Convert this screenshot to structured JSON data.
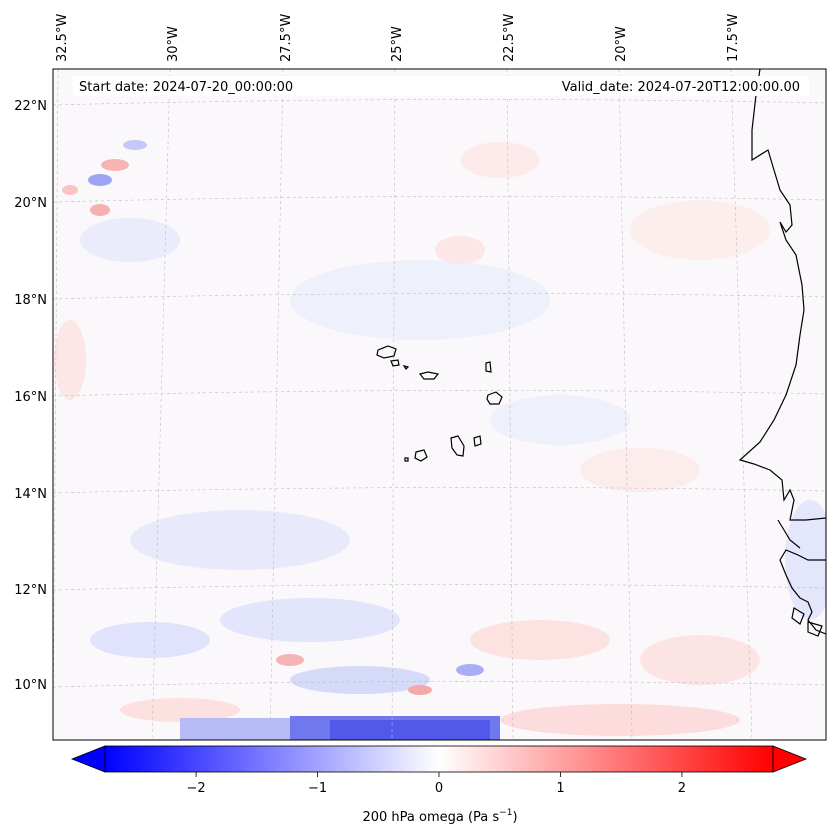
{
  "map": {
    "top_lon_labels": [
      "32.5°W",
      "30°W",
      "27.5°W",
      "25°W",
      "22.5°W",
      "20°W",
      "17.5°W"
    ],
    "left_lat_labels": [
      "22°N",
      "20°N",
      "18°N",
      "16°N",
      "14°N",
      "12°N",
      "10°N"
    ],
    "start_date_text": "Start date: 2024-07-20_00:00:00",
    "valid_date_text": "Valid_date: 2024-07-20T12:00:00.00",
    "field_colors": {
      "negative": "#0000ff",
      "neutral": "#ffffff",
      "positive": "#ff0000",
      "coastline": "#000000",
      "gridline": "#bbbbbb"
    }
  },
  "colorbar": {
    "tick_labels": [
      "−2",
      "−1",
      "0",
      "1",
      "2"
    ],
    "tick_values": [
      -2,
      -1,
      0,
      1,
      2
    ],
    "range": [
      -2.75,
      2.75
    ],
    "label_main": "200 hPa omega (Pa s",
    "label_sup": "−1",
    "label_end": ")"
  }
}
